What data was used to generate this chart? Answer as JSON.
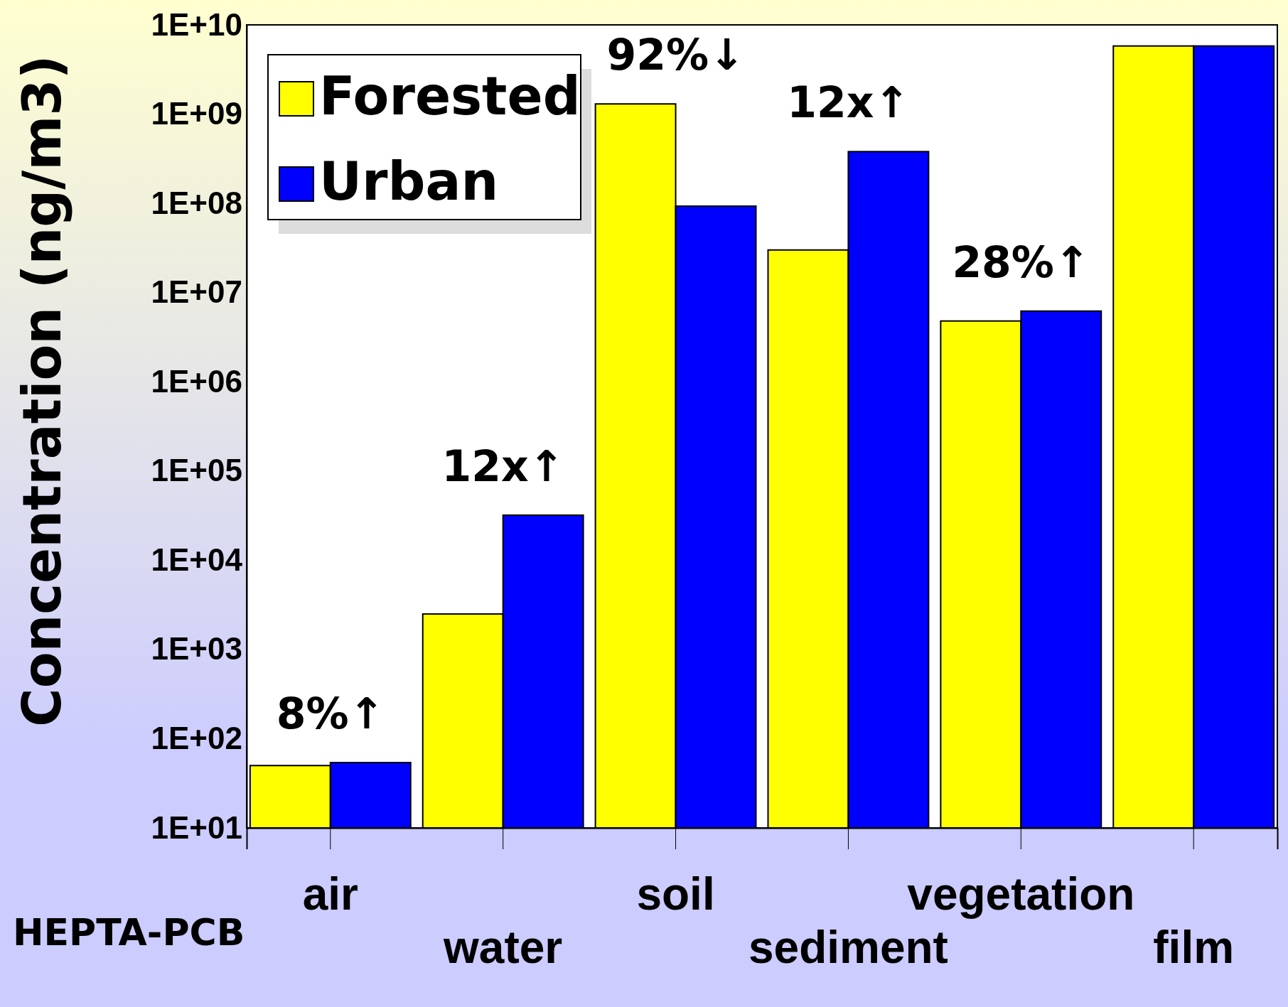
{
  "chart_data": {
    "type": "bar",
    "ylabel": "Concentration (ng/m3)",
    "categories": [
      "air",
      "water",
      "soil",
      "sediment",
      "vegetation",
      "film"
    ],
    "series": [
      {
        "name": "Forested",
        "color": "#ffff00",
        "values": [
          50,
          2500,
          1300000000,
          30000000,
          4800000,
          5800000000
        ]
      },
      {
        "name": "Urban",
        "color": "#0000ff",
        "values": [
          54,
          32000,
          93000000,
          380000000,
          6200000,
          5800000000
        ]
      }
    ],
    "log": "y",
    "ylim": [
      10,
      10000000000
    ],
    "yticks": [
      {
        "value": 10,
        "label": "1E+01"
      },
      {
        "value": 100,
        "label": "1E+02"
      },
      {
        "value": 1000,
        "label": "1E+03"
      },
      {
        "value": 10000,
        "label": "1E+04"
      },
      {
        "value": 100000,
        "label": "1E+05"
      },
      {
        "value": 1000000,
        "label": "1E+06"
      },
      {
        "value": 10000000,
        "label": "1E+07"
      },
      {
        "value": 100000000,
        "label": "1E+08"
      },
      {
        "value": 1000000000,
        "label": "1E+09"
      },
      {
        "value": 10000000000,
        "label": "1E+10"
      }
    ],
    "legend": "top left",
    "grid": false,
    "annotations": [
      {
        "text": "8%↑",
        "x": "air",
        "y": 54
      },
      {
        "text": "12x↑",
        "x": "water",
        "y": 32000
      },
      {
        "text": "92%↓",
        "x": "soil",
        "y": 1300000000
      },
      {
        "text": "12x↑",
        "x": "sediment",
        "y": 380000000
      },
      {
        "text": "28%↑",
        "x": "vegetation",
        "y": 6200000
      },
      "HEPTA-PCB"
    ]
  }
}
